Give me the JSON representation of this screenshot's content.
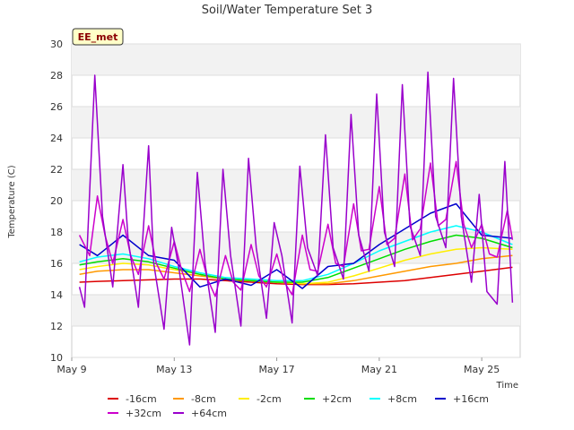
{
  "chart_data": {
    "type": "line",
    "title": "Soil/Water Temperature Set 3",
    "xlabel": "Time",
    "ylabel": "Temperature (C)",
    "badge": "EE_met",
    "xlim": [
      9.0,
      26.5
    ],
    "ylim": [
      10,
      30
    ],
    "yticks": [
      10,
      12,
      14,
      16,
      18,
      20,
      22,
      24,
      26,
      28,
      30
    ],
    "xticks": [
      {
        "value": 9,
        "label": "May 9"
      },
      {
        "value": 13,
        "label": "May 13"
      },
      {
        "value": 17,
        "label": "May 17"
      },
      {
        "value": 21,
        "label": "May 21"
      },
      {
        "value": 25,
        "label": "May 25"
      }
    ],
    "grid": "horizontal bands",
    "legend_position": "bottom",
    "series": [
      {
        "name": "-16cm",
        "color": "#dd0000",
        "x": [
          9.3,
          10,
          11,
          12,
          13,
          14,
          15,
          16,
          17,
          18,
          19,
          20,
          21,
          22,
          23,
          24,
          25,
          26.2
        ],
        "y": [
          14.8,
          14.85,
          14.9,
          14.95,
          15.0,
          15.0,
          14.9,
          14.8,
          14.7,
          14.65,
          14.65,
          14.7,
          14.8,
          14.9,
          15.1,
          15.3,
          15.5,
          15.75
        ]
      },
      {
        "name": "-8cm",
        "color": "#ff9900",
        "x": [
          9.3,
          10,
          11,
          12,
          13,
          14,
          15,
          16,
          17,
          18,
          19,
          20,
          21,
          22,
          23,
          24,
          25,
          26.2
        ],
        "y": [
          15.3,
          15.5,
          15.6,
          15.6,
          15.4,
          15.2,
          15.0,
          14.9,
          14.8,
          14.7,
          14.7,
          14.9,
          15.2,
          15.5,
          15.8,
          16.0,
          16.3,
          16.5
        ]
      },
      {
        "name": "-2cm",
        "color": "#ffee00",
        "x": [
          9.3,
          10,
          11,
          12,
          13,
          14,
          15,
          16,
          17,
          18,
          19,
          20,
          21,
          22,
          23,
          24,
          25,
          26.2
        ],
        "y": [
          15.6,
          15.8,
          16.0,
          15.9,
          15.6,
          15.3,
          15.0,
          14.9,
          14.8,
          14.7,
          14.8,
          15.2,
          15.7,
          16.2,
          16.6,
          16.9,
          17.0,
          16.9
        ]
      },
      {
        "name": "+2cm",
        "color": "#00dd00",
        "x": [
          9.3,
          10,
          11,
          12,
          13,
          14,
          15,
          16,
          17,
          18,
          19,
          20,
          21,
          22,
          23,
          24,
          25,
          26.2
        ],
        "y": [
          15.9,
          16.1,
          16.3,
          16.1,
          15.7,
          15.3,
          15.0,
          14.9,
          14.8,
          14.8,
          15.1,
          15.7,
          16.3,
          16.9,
          17.4,
          17.8,
          17.6,
          17.0
        ]
      },
      {
        "name": "+8cm",
        "color": "#00ffff",
        "x": [
          9.3,
          10,
          11,
          12,
          13,
          14,
          15,
          16,
          17,
          18,
          19,
          20,
          21,
          22,
          23,
          24,
          25,
          26.2
        ],
        "y": [
          16.1,
          16.4,
          16.6,
          16.3,
          15.8,
          15.4,
          15.1,
          15.0,
          14.9,
          14.9,
          15.3,
          16.0,
          16.8,
          17.4,
          18.0,
          18.4,
          18.0,
          17.2
        ]
      },
      {
        "name": "+16cm",
        "color": "#0000cc",
        "x": [
          9.3,
          10,
          11,
          12,
          13,
          14,
          15,
          16,
          17,
          18,
          19,
          20,
          21,
          22,
          23,
          24,
          25,
          26.2
        ],
        "y": [
          17.2,
          16.5,
          17.8,
          16.5,
          16.2,
          14.5,
          15.0,
          14.6,
          15.6,
          14.4,
          15.8,
          16.0,
          17.2,
          18.2,
          19.2,
          19.8,
          17.8,
          17.6
        ]
      },
      {
        "name": "+32cm",
        "color": "#cc00cc",
        "x": [
          9.3,
          9.7,
          10.0,
          10.3,
          10.6,
          11.0,
          11.3,
          11.6,
          12.0,
          12.3,
          12.6,
          13.0,
          13.3,
          13.6,
          14.0,
          14.3,
          14.6,
          15.0,
          15.3,
          15.6,
          16.0,
          16.3,
          16.6,
          17.0,
          17.3,
          17.6,
          18.0,
          18.3,
          18.6,
          19.0,
          19.3,
          19.6,
          20.0,
          20.3,
          20.6,
          21.0,
          21.3,
          21.6,
          22.0,
          22.3,
          22.6,
          23.0,
          23.3,
          23.6,
          24.0,
          24.3,
          24.6,
          25.0,
          25.3,
          25.6,
          26.0,
          26.2
        ],
        "y": [
          17.8,
          16.5,
          20.3,
          17.8,
          16.0,
          18.8,
          16.5,
          15.3,
          18.4,
          16.0,
          15.0,
          17.4,
          15.5,
          14.2,
          16.9,
          15.0,
          13.9,
          16.5,
          14.8,
          14.3,
          17.2,
          15.2,
          14.5,
          16.6,
          14.8,
          14.0,
          17.8,
          15.6,
          15.5,
          18.5,
          16.0,
          15.8,
          19.8,
          16.8,
          16.9,
          20.9,
          17.2,
          17.6,
          21.7,
          17.5,
          18.2,
          22.4,
          18.4,
          18.8,
          22.5,
          18.5,
          17.0,
          18.5,
          16.6,
          16.4,
          19.4,
          17.5
        ]
      },
      {
        "name": "+64cm",
        "color": "#9900cc",
        "x": [
          9.3,
          9.5,
          9.9,
          10.2,
          10.6,
          11.0,
          11.2,
          11.6,
          12.0,
          12.2,
          12.6,
          12.9,
          13.2,
          13.6,
          13.9,
          14.2,
          14.6,
          14.9,
          15.2,
          15.6,
          15.9,
          16.2,
          16.6,
          16.9,
          17.2,
          17.6,
          17.9,
          18.2,
          18.6,
          18.9,
          19.2,
          19.6,
          19.9,
          20.2,
          20.6,
          20.9,
          21.2,
          21.6,
          21.9,
          22.2,
          22.6,
          22.9,
          23.2,
          23.6,
          23.9,
          24.2,
          24.6,
          24.9,
          25.2,
          25.6,
          25.9,
          26.2
        ],
        "y": [
          14.5,
          13.2,
          28.0,
          19.0,
          14.5,
          22.3,
          17.5,
          13.2,
          23.5,
          16.0,
          11.8,
          18.3,
          15.5,
          10.8,
          21.8,
          16.0,
          11.6,
          22.0,
          16.5,
          12.0,
          22.7,
          17.0,
          12.5,
          18.6,
          16.5,
          12.2,
          22.2,
          17.0,
          15.2,
          24.2,
          17.0,
          15.0,
          25.5,
          17.8,
          15.5,
          26.8,
          18.0,
          15.8,
          27.4,
          18.4,
          16.5,
          28.2,
          19.0,
          17.0,
          27.8,
          19.0,
          14.8,
          20.4,
          14.2,
          13.4,
          22.5,
          13.5
        ]
      }
    ]
  }
}
